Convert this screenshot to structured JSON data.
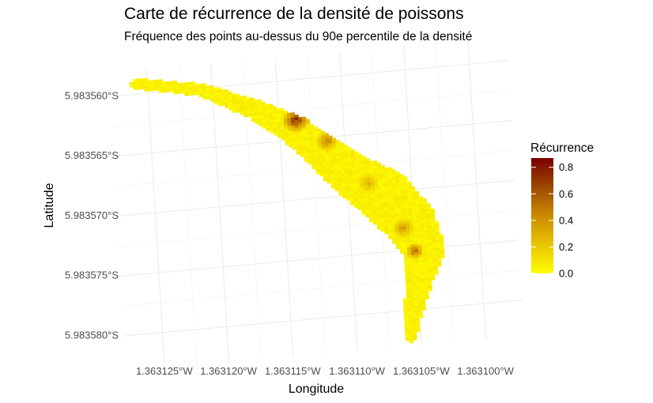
{
  "chart_data": {
    "type": "heatmap",
    "title": "Carte de récurrence de la densité de poissons",
    "subtitle": "Fréquence des points au-dessus du 90e percentile de la densité",
    "xlabel": "Longitude",
    "ylabel": "Latitude",
    "x_tick_labels": [
      "1.363125°W",
      "1.363120°W",
      "1.363115°W",
      "1.363110°W",
      "1.363105°W",
      "1.363100°W"
    ],
    "y_tick_labels": [
      "5.983560°S",
      "5.983565°S",
      "5.983570°S",
      "5.983575°S",
      "5.983580°S"
    ],
    "x_ticks": [
      -1.363125,
      -1.36312,
      -1.363115,
      -1.36311,
      -1.363105,
      -1.3631
    ],
    "y_ticks": [
      -5.98356,
      -5.983565,
      -5.98357,
      -5.983575,
      -5.98358
    ],
    "xlim": [
      -1.3631275,
      -1.3630975
    ],
    "ylim": [
      -5.9835825,
      -5.9835585
    ],
    "grid": true,
    "legend": {
      "title": "Récurrence",
      "placement": "right",
      "ticks": [
        0.0,
        0.2,
        0.4,
        0.6,
        0.8
      ],
      "tick_labels": [
        "0.0",
        "0.2",
        "0.4",
        "0.6",
        "0.8"
      ],
      "range": [
        0,
        0.87
      ],
      "colors": [
        "#ffff00",
        "#e9c400",
        "#cc8a00",
        "#9c4800",
        "#7a0000"
      ]
    },
    "region": {
      "description_free": true,
      "centerline": [
        [
          -1.363126,
          -5.983559
        ],
        [
          -1.363121,
          -5.98356
        ],
        [
          -1.363117,
          -5.983562
        ],
        [
          -1.363114,
          -5.983564
        ],
        [
          -1.363112,
          -5.983566
        ],
        [
          -1.36311,
          -5.983568
        ],
        [
          -1.3631075,
          -5.98357
        ],
        [
          -1.3631055,
          -5.9835725
        ],
        [
          -1.3631045,
          -5.983575
        ],
        [
          -1.363105,
          -5.9835775
        ],
        [
          -1.3631058,
          -5.9835805
        ],
        [
          -1.363106,
          -5.983582
        ]
      ],
      "halfwidth": [
        4.5e-07,
        5e-07,
        8e-07,
        1.2e-06,
        1.4e-06,
        1.7e-06,
        2.2e-06,
        2e-06,
        1.6e-06,
        1e-06,
        7e-07,
        5e-07
      ],
      "hotspots": [
        {
          "x": -1.3631138,
          "y": -5.9835632,
          "value": 0.87,
          "radius": 1.2e-06
        },
        {
          "x": -1.3631115,
          "y": -5.9835652,
          "value": 0.55,
          "radius": 1e-06
        },
        {
          "x": -1.3631085,
          "y": -5.983569,
          "value": 0.35,
          "radius": 1e-06
        },
        {
          "x": -1.363106,
          "y": -5.983573,
          "value": 0.45,
          "radius": 1e-06
        },
        {
          "x": -1.3631052,
          "y": -5.983575,
          "value": 0.65,
          "radius": 8e-07
        }
      ]
    }
  }
}
